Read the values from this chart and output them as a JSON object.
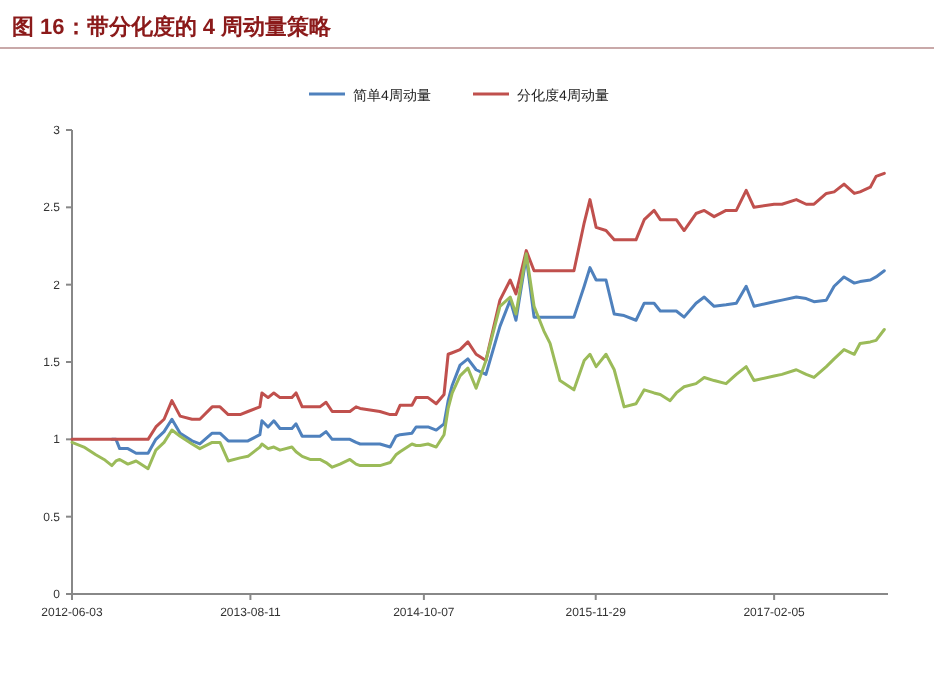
{
  "chart_data": {
    "type": "line",
    "title": "图 16：带分化度的 4 周动量策略",
    "x": [
      "2012-06-03",
      "2012-07-02",
      "2012-07-31",
      "2012-08-20",
      "2012-09-08",
      "2012-09-18",
      "2012-09-27",
      "2012-10-17",
      "2012-11-06",
      "2012-12-05",
      "2012-12-24",
      "2013-01-13",
      "2013-02-01",
      "2013-02-21",
      "2013-03-22",
      "2013-04-10",
      "2013-05-10",
      "2013-05-29",
      "2013-06-18",
      "2013-07-17",
      "2013-08-05",
      "2013-09-03",
      "2013-09-08",
      "2013-09-23",
      "2013-10-07",
      "2013-10-22",
      "2013-11-20",
      "2013-11-30",
      "2013-12-15",
      "2014-01-03",
      "2014-01-27",
      "2014-02-11",
      "2014-02-26",
      "2014-03-17",
      "2014-04-10",
      "2014-04-25",
      "2014-05-05",
      "2014-06-22",
      "2014-07-17",
      "2014-07-31",
      "2014-08-10",
      "2014-09-08",
      "2014-09-18",
      "2014-09-28",
      "2014-10-17",
      "2014-11-06",
      "2014-11-25",
      "2014-12-05",
      "2014-12-15",
      "2015-01-03",
      "2015-01-22",
      "2015-02-11",
      "2015-03-07",
      "2015-04-10",
      "2015-05-05",
      "2015-05-19",
      "2015-06-13",
      "2015-07-02",
      "2015-07-26",
      "2015-08-10",
      "2015-09-03",
      "2015-10-07",
      "2015-11-01",
      "2015-11-15",
      "2015-11-30",
      "2015-12-24",
      "2016-01-13",
      "2016-02-06",
      "2016-03-06",
      "2016-03-26",
      "2016-04-19",
      "2016-05-04",
      "2016-05-28",
      "2016-06-12",
      "2016-07-01",
      "2016-07-30",
      "2016-08-19",
      "2016-09-12",
      "2016-10-11",
      "2016-11-05",
      "2016-11-29",
      "2016-12-18",
      "2017-02-05",
      "2017-02-24",
      "2017-03-31",
      "2017-04-24",
      "2017-05-13",
      "2017-06-12",
      "2017-07-01",
      "2017-07-25",
      "2017-08-19",
      "2017-09-02",
      "2017-09-27",
      "2017-10-11",
      "2017-10-31"
    ],
    "series": [
      {
        "name": "简单4周动量",
        "color": "#4f81bd",
        "values": [
          null,
          null,
          null,
          null,
          1.0,
          1.0,
          0.94,
          0.94,
          0.91,
          0.91,
          1.0,
          1.05,
          1.13,
          1.04,
          0.99,
          0.97,
          1.04,
          1.04,
          0.99,
          0.99,
          0.99,
          1.03,
          1.12,
          1.08,
          1.12,
          1.07,
          1.07,
          1.1,
          1.02,
          1.02,
          1.02,
          1.05,
          1.0,
          1.0,
          1.0,
          0.98,
          0.97,
          0.97,
          0.95,
          1.02,
          1.03,
          1.04,
          1.08,
          1.08,
          1.08,
          1.06,
          1.1,
          1.25,
          1.35,
          1.48,
          1.52,
          1.45,
          1.42,
          1.73,
          1.9,
          1.77,
          2.18,
          1.79,
          1.79,
          1.79,
          1.79,
          1.79,
          1.99,
          2.11,
          2.03,
          2.03,
          1.81,
          1.8,
          1.77,
          1.88,
          1.88,
          1.83,
          1.83,
          1.83,
          1.79,
          1.88,
          1.92,
          1.86,
          1.87,
          1.88,
          1.99,
          1.86,
          1.89,
          1.9,
          1.92,
          1.91,
          1.89,
          1.9,
          1.99,
          2.05,
          2.01,
          2.02,
          2.03,
          2.05,
          2.09
        ]
      },
      {
        "name": "分化度4周动量",
        "color": "#c0504d",
        "values": [
          1.0,
          1.0,
          1.0,
          1.0,
          1.0,
          1.0,
          1.0,
          1.0,
          1.0,
          1.0,
          1.08,
          1.13,
          1.25,
          1.15,
          1.13,
          1.13,
          1.21,
          1.21,
          1.16,
          1.16,
          1.18,
          1.21,
          1.3,
          1.27,
          1.3,
          1.27,
          1.27,
          1.3,
          1.21,
          1.21,
          1.21,
          1.24,
          1.18,
          1.18,
          1.18,
          1.21,
          1.2,
          1.18,
          1.16,
          1.16,
          1.22,
          1.22,
          1.27,
          1.27,
          1.27,
          1.23,
          1.29,
          1.55,
          1.56,
          1.58,
          1.63,
          1.55,
          1.51,
          1.9,
          2.03,
          1.94,
          2.22,
          2.09,
          2.09,
          2.09,
          2.09,
          2.09,
          2.4,
          2.55,
          2.37,
          2.35,
          2.29,
          2.29,
          2.29,
          2.42,
          2.48,
          2.42,
          2.42,
          2.42,
          2.35,
          2.46,
          2.48,
          2.44,
          2.48,
          2.48,
          2.61,
          2.5,
          2.52,
          2.52,
          2.55,
          2.52,
          2.52,
          2.59,
          2.6,
          2.65,
          2.59,
          2.6,
          2.63,
          2.7,
          2.72
        ]
      },
      {
        "color": "#9bbb59",
        "values": [
          0.98,
          0.95,
          0.9,
          0.87,
          0.83,
          0.86,
          0.87,
          0.84,
          0.86,
          0.81,
          0.93,
          0.98,
          1.06,
          1.02,
          0.97,
          0.94,
          0.98,
          0.98,
          0.86,
          0.88,
          0.89,
          0.95,
          0.97,
          0.94,
          0.95,
          0.93,
          0.95,
          0.92,
          0.89,
          0.87,
          0.87,
          0.85,
          0.82,
          0.84,
          0.87,
          0.84,
          0.83,
          0.83,
          0.85,
          0.9,
          0.92,
          0.97,
          0.96,
          0.96,
          0.97,
          0.95,
          1.03,
          1.2,
          1.3,
          1.41,
          1.46,
          1.33,
          1.51,
          1.86,
          1.92,
          1.81,
          2.2,
          1.86,
          1.7,
          1.62,
          1.38,
          1.32,
          1.51,
          1.55,
          1.47,
          1.55,
          1.45,
          1.21,
          1.23,
          1.32,
          1.3,
          1.29,
          1.25,
          1.3,
          1.34,
          1.36,
          1.4,
          1.38,
          1.36,
          1.42,
          1.47,
          1.38,
          1.41,
          1.42,
          1.45,
          1.42,
          1.4,
          1.47,
          1.52,
          1.58,
          1.55,
          1.62,
          1.63,
          1.64,
          1.71
        ]
      }
    ],
    "xlim": [
      "2012-06-03",
      "2017-11-09"
    ],
    "xticks": [
      "2012-06-03",
      "2013-08-11",
      "2014-10-07",
      "2015-11-29",
      "2017-02-05"
    ],
    "ylim": [
      0,
      3
    ],
    "yticks": [
      0,
      0.5,
      1,
      1.5,
      2,
      2.5,
      3
    ],
    "legend": "top"
  }
}
